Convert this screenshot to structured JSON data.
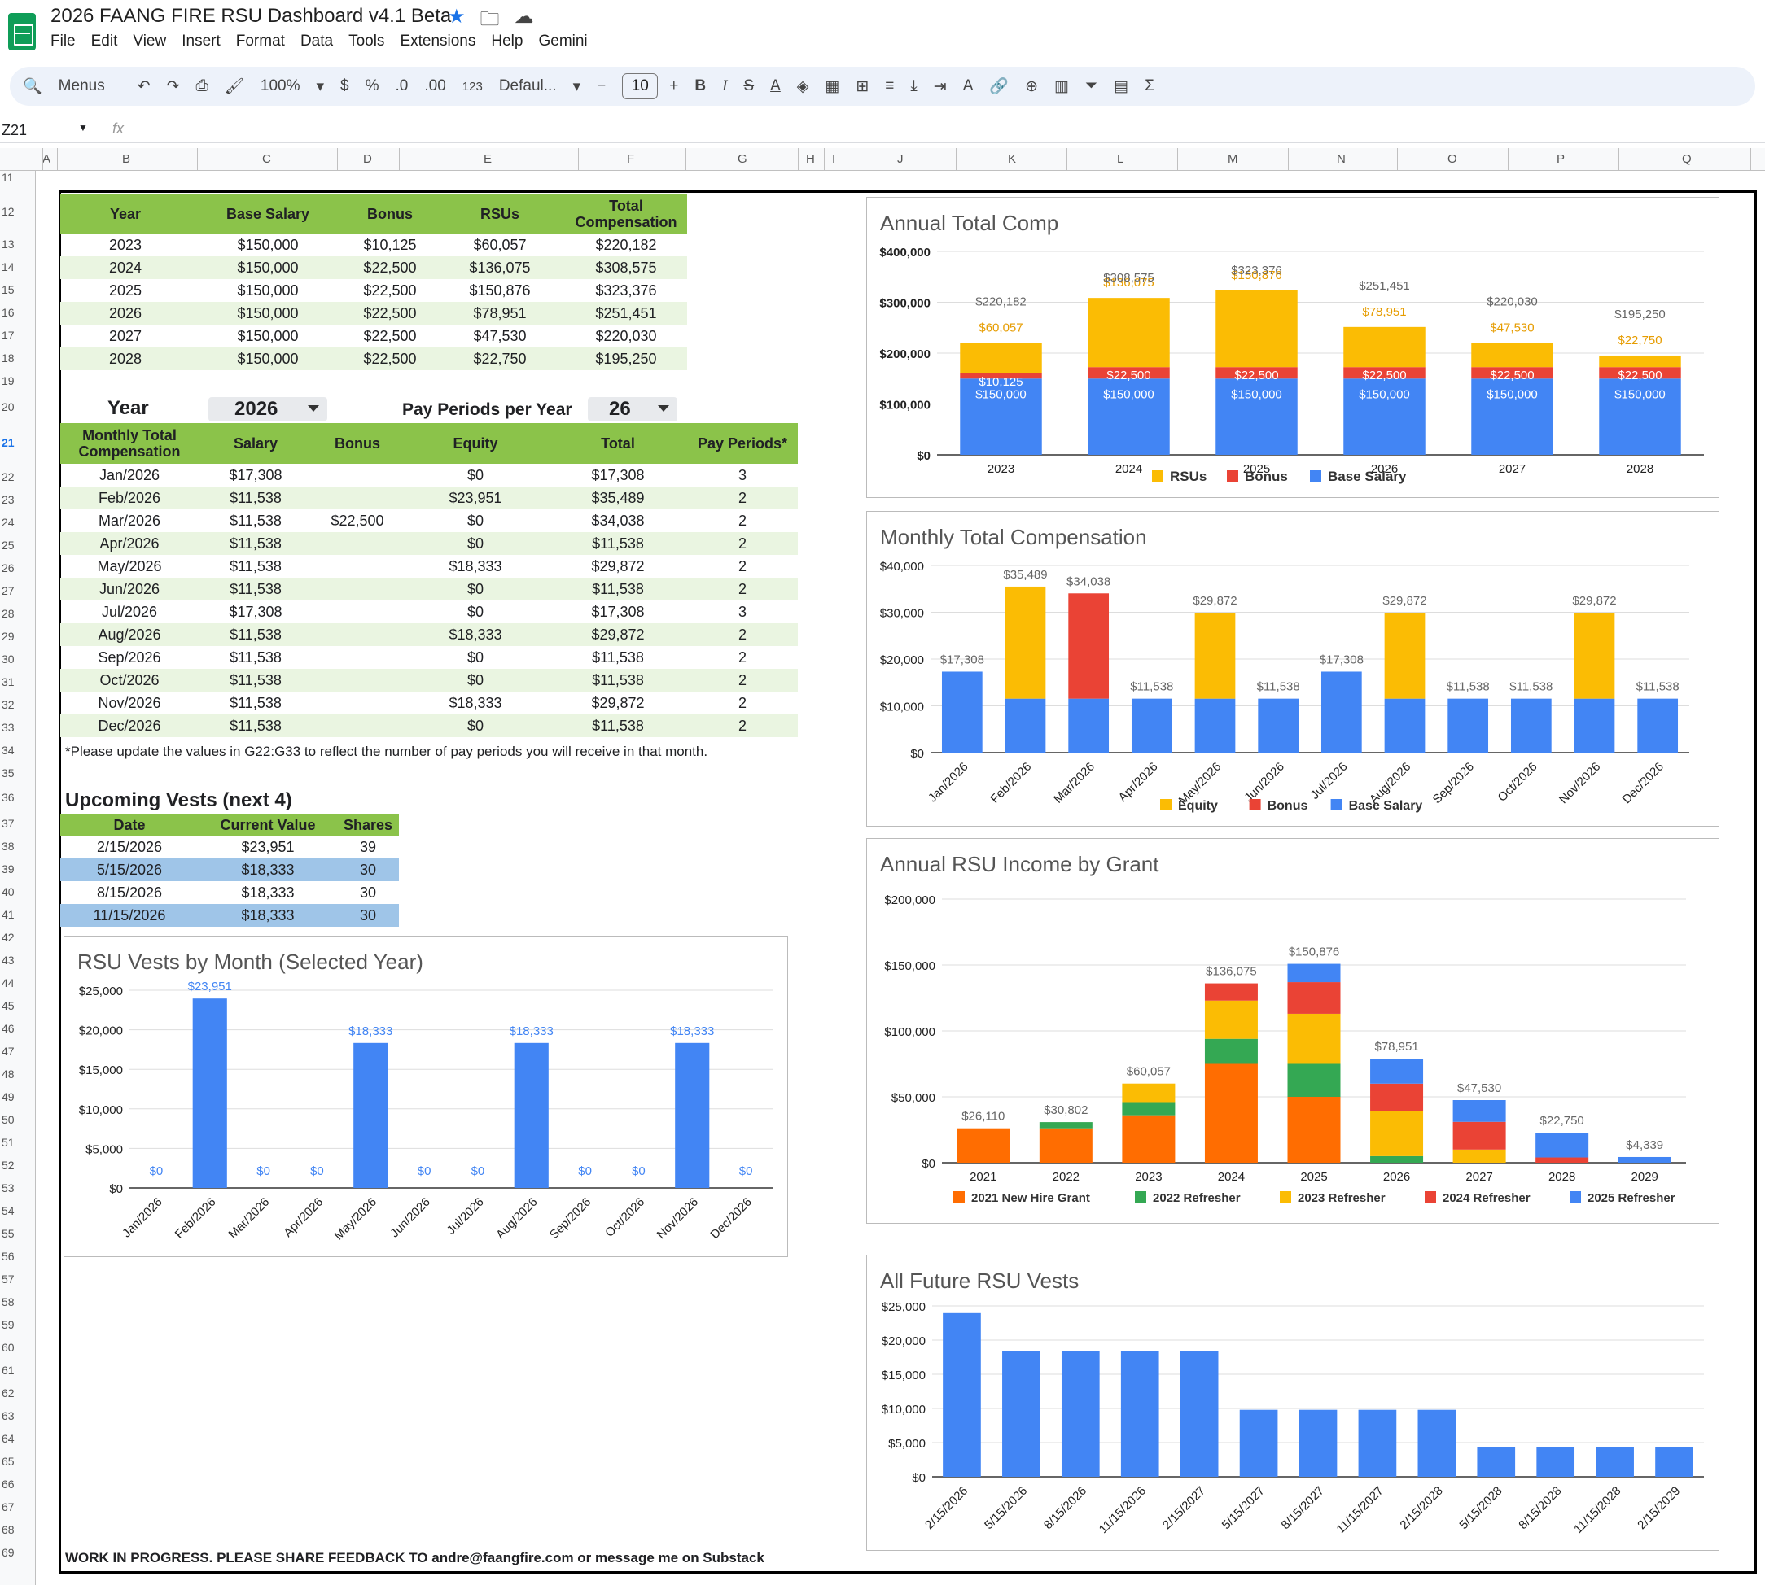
{
  "app": {
    "title": "2026 FAANG FIRE RSU Dashboard v4.1 Beta",
    "menus": [
      "File",
      "Edit",
      "View",
      "Insert",
      "Format",
      "Data",
      "Tools",
      "Extensions",
      "Help",
      "Gemini"
    ]
  },
  "toolbar": {
    "menus_label": "Menus",
    "zoom": "100%",
    "currency": "$",
    "percent": "%",
    "dec_less": ".0",
    "dec_more": ".00",
    "number_format": "123",
    "font": "Defaul...",
    "font_size": "10"
  },
  "formula": {
    "cell": "Z21",
    "fx": "fx"
  },
  "columns": [
    "A",
    "B",
    "C",
    "D",
    "E",
    "F",
    "G",
    "H",
    "I",
    "J",
    "K",
    "L",
    "M",
    "N",
    "O",
    "P",
    "Q"
  ],
  "rows": [
    "11",
    "12",
    "13",
    "14",
    "15",
    "16",
    "17",
    "18",
    "19",
    "20",
    "21",
    "22",
    "23",
    "24",
    "25",
    "26",
    "27",
    "28",
    "29",
    "30",
    "31",
    "32",
    "33",
    "34",
    "35",
    "36",
    "37",
    "38",
    "39",
    "40",
    "41",
    "42",
    "43",
    "44",
    "45",
    "46",
    "47",
    "48",
    "49",
    "50",
    "51",
    "52",
    "53",
    "54",
    "55",
    "56",
    "57",
    "58",
    "59",
    "60",
    "61",
    "62",
    "63",
    "64",
    "65",
    "66",
    "67",
    "68",
    "69"
  ],
  "annual_table": {
    "headers": [
      "Year",
      "Base Salary",
      "Bonus",
      "RSUs",
      "Total Compensation"
    ],
    "rows": [
      [
        "2023",
        "$150,000",
        "$10,125",
        "$60,057",
        "$220,182"
      ],
      [
        "2024",
        "$150,000",
        "$22,500",
        "$136,075",
        "$308,575"
      ],
      [
        "2025",
        "$150,000",
        "$22,500",
        "$150,876",
        "$323,376"
      ],
      [
        "2026",
        "$150,000",
        "$22,500",
        "$78,951",
        "$251,451"
      ],
      [
        "2027",
        "$150,000",
        "$22,500",
        "$47,530",
        "$220,030"
      ],
      [
        "2028",
        "$150,000",
        "$22,500",
        "$22,750",
        "$195,250"
      ]
    ]
  },
  "selector": {
    "year_label": "Year",
    "year_value": "2026",
    "pp_label": "Pay Periods per Year",
    "pp_value": "26"
  },
  "monthly_table": {
    "headers": [
      "Monthly Total Compensation",
      "Salary",
      "Bonus",
      "Equity",
      "Total",
      "Pay Periods*"
    ],
    "rows": [
      [
        "Jan/2026",
        "$17,308",
        "",
        "$0",
        "$17,308",
        "3"
      ],
      [
        "Feb/2026",
        "$11,538",
        "",
        "$23,951",
        "$35,489",
        "2"
      ],
      [
        "Mar/2026",
        "$11,538",
        "$22,500",
        "$0",
        "$34,038",
        "2"
      ],
      [
        "Apr/2026",
        "$11,538",
        "",
        "$0",
        "$11,538",
        "2"
      ],
      [
        "May/2026",
        "$11,538",
        "",
        "$18,333",
        "$29,872",
        "2"
      ],
      [
        "Jun/2026",
        "$11,538",
        "",
        "$0",
        "$11,538",
        "2"
      ],
      [
        "Jul/2026",
        "$17,308",
        "",
        "$0",
        "$17,308",
        "3"
      ],
      [
        "Aug/2026",
        "$11,538",
        "",
        "$18,333",
        "$29,872",
        "2"
      ],
      [
        "Sep/2026",
        "$11,538",
        "",
        "$0",
        "$11,538",
        "2"
      ],
      [
        "Oct/2026",
        "$11,538",
        "",
        "$0",
        "$11,538",
        "2"
      ],
      [
        "Nov/2026",
        "$11,538",
        "",
        "$18,333",
        "$29,872",
        "2"
      ],
      [
        "Dec/2026",
        "$11,538",
        "",
        "$0",
        "$11,538",
        "2"
      ]
    ]
  },
  "note": "*Please update the values in G22:G33 to reflect the number of pay periods you will receive in that month.",
  "vests": {
    "title": "Upcoming Vests (next 4)",
    "headers": [
      "Date",
      "Current Value",
      "Shares"
    ],
    "rows": [
      [
        "2/15/2026",
        "$23,951",
        "39"
      ],
      [
        "5/15/2026",
        "$18,333",
        "30"
      ],
      [
        "8/15/2026",
        "$18,333",
        "30"
      ],
      [
        "11/15/2026",
        "$18,333",
        "30"
      ]
    ]
  },
  "footer": "WORK IN PROGRESS. PLEASE SHARE FEEDBACK TO andre@faangfire.com or message me on Substack",
  "colors": {
    "rsu": "#fbbc04",
    "bonus": "#ea4335",
    "base": "#4285f4",
    "g2021": "#ff6d01",
    "g2022": "#34a853",
    "g2023": "#fbbc04",
    "g2024": "#ea4335",
    "g2025": "#4285f4",
    "header_green": "#8bc34a",
    "alt_row": "#eaf5e1",
    "highlight_blue": "#9fc5e8"
  },
  "chart_data": [
    {
      "type": "bar",
      "stacked": true,
      "title": "Annual Total Comp",
      "categories": [
        "2023",
        "2024",
        "2025",
        "2026",
        "2027",
        "2028"
      ],
      "ylim": [
        0,
        400000
      ],
      "yticks": [
        "$0",
        "$100,000",
        "$200,000",
        "$300,000",
        "$400,000"
      ],
      "legend": "bottom",
      "series": [
        {
          "name": "Base Salary",
          "values": [
            150000,
            150000,
            150000,
            150000,
            150000,
            150000
          ],
          "labels": [
            "$150,000",
            "$150,000",
            "$150,000",
            "$150,000",
            "$150,000",
            "$150,000"
          ]
        },
        {
          "name": "Bonus",
          "values": [
            10125,
            22500,
            22500,
            22500,
            22500,
            22500
          ],
          "labels": [
            "$10,125",
            "$22,500",
            "$22,500",
            "$22,500",
            "$22,500",
            "$22,500"
          ]
        },
        {
          "name": "RSUs",
          "values": [
            60057,
            136075,
            150876,
            78951,
            47530,
            22750
          ],
          "labels": [
            "$60,057",
            "$136,075",
            "$150,876",
            "$78,951",
            "$47,530",
            "$22,750"
          ]
        }
      ],
      "totals": [
        "$220,182",
        "$308,575",
        "$323,376",
        "$251,451",
        "$220,030",
        "$195,250"
      ]
    },
    {
      "type": "bar",
      "stacked": true,
      "title": "Monthly Total Compensation",
      "categories": [
        "Jan/2026",
        "Feb/2026",
        "Mar/2026",
        "Apr/2026",
        "May/2026",
        "Jun/2026",
        "Jul/2026",
        "Aug/2026",
        "Sep/2026",
        "Oct/2026",
        "Nov/2026",
        "Dec/2026"
      ],
      "ylim": [
        0,
        40000
      ],
      "yticks": [
        "$0",
        "$10,000",
        "$20,000",
        "$30,000",
        "$40,000"
      ],
      "legend": "bottom",
      "series": [
        {
          "name": "Base Salary",
          "values": [
            17308,
            11538,
            11538,
            11538,
            11538,
            11538,
            17308,
            11538,
            11538,
            11538,
            11538,
            11538
          ]
        },
        {
          "name": "Bonus",
          "values": [
            0,
            0,
            22500,
            0,
            0,
            0,
            0,
            0,
            0,
            0,
            0,
            0
          ]
        },
        {
          "name": "Equity",
          "values": [
            0,
            23951,
            0,
            0,
            18333,
            0,
            0,
            18333,
            0,
            0,
            18333,
            0
          ]
        }
      ],
      "totals": [
        "$17,308",
        "$35,489",
        "$34,038",
        "$11,538",
        "$29,872",
        "$11,538",
        "$17,308",
        "$29,872",
        "$11,538",
        "$11,538",
        "$29,872",
        "$11,538"
      ]
    },
    {
      "type": "bar",
      "stacked": true,
      "title": "Annual RSU Income by Grant",
      "categories": [
        "2021",
        "2022",
        "2023",
        "2024",
        "2025",
        "2026",
        "2027",
        "2028",
        "2029"
      ],
      "ylim": [
        0,
        200000
      ],
      "yticks": [
        "$0",
        "$50,000",
        "$100,000",
        "$150,000",
        "$200,000"
      ],
      "legend": "bottom",
      "series": [
        {
          "name": "2021 New Hire Grant",
          "values": [
            26110,
            26110,
            36000,
            75000,
            50000,
            0,
            0,
            0,
            0
          ]
        },
        {
          "name": "2022 Refresher",
          "values": [
            0,
            4692,
            10000,
            19000,
            25000,
            5000,
            0,
            0,
            0
          ]
        },
        {
          "name": "2023 Refresher",
          "values": [
            0,
            0,
            14057,
            29000,
            38000,
            34000,
            10000,
            0,
            0
          ]
        },
        {
          "name": "2024 Refresher",
          "values": [
            0,
            0,
            0,
            13075,
            24000,
            21000,
            21000,
            4000,
            0
          ]
        },
        {
          "name": "2025 Refresher",
          "values": [
            0,
            0,
            0,
            0,
            13876,
            18951,
            16530,
            18750,
            4339
          ]
        }
      ],
      "totals": [
        "$26,110",
        "$30,802",
        "$60,057",
        "$136,075",
        "$150,876",
        "$78,951",
        "$47,530",
        "$22,750",
        "$4,339"
      ]
    },
    {
      "type": "bar",
      "title": "RSU Vests by Month (Selected Year)",
      "categories": [
        "Jan/2026",
        "Feb/2026",
        "Mar/2026",
        "Apr/2026",
        "May/2026",
        "Jun/2026",
        "Jul/2026",
        "Aug/2026",
        "Sep/2026",
        "Oct/2026",
        "Nov/2026",
        "Dec/2026"
      ],
      "ylim": [
        0,
        25000
      ],
      "yticks": [
        "$0",
        "$5,000",
        "$10,000",
        "$15,000",
        "$20,000",
        "$25,000"
      ],
      "series": [
        {
          "values": [
            0,
            23951,
            0,
            0,
            18333,
            0,
            0,
            18333,
            0,
            0,
            18333,
            0
          ]
        }
      ],
      "totals": [
        "$0",
        "$23,951",
        "$0",
        "$0",
        "$18,333",
        "$0",
        "$0",
        "$18,333",
        "$0",
        "$0",
        "$18,333",
        "$0"
      ]
    },
    {
      "type": "bar",
      "title": "All Future RSU Vests",
      "categories": [
        "2/15/2026",
        "5/15/2026",
        "8/15/2026",
        "11/15/2026",
        "2/15/2027",
        "5/15/2027",
        "8/15/2027",
        "11/15/2027",
        "2/15/2028",
        "5/15/2028",
        "8/15/2028",
        "11/15/2028",
        "2/15/2029"
      ],
      "ylim": [
        0,
        25000
      ],
      "yticks": [
        "$0",
        "$5,000",
        "$10,000",
        "$15,000",
        "$20,000",
        "$25,000"
      ],
      "series": [
        {
          "values": [
            23951,
            18333,
            18333,
            18333,
            18333,
            9800,
            9800,
            9800,
            9800,
            4339,
            4339,
            4339,
            4339
          ]
        }
      ]
    }
  ]
}
